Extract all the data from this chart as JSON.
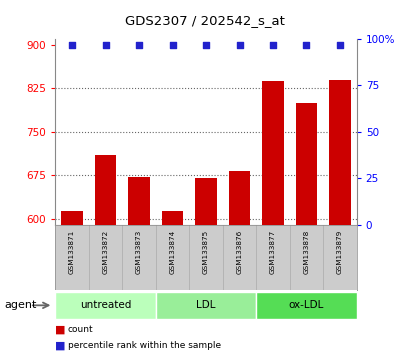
{
  "title": "GDS2307 / 202542_s_at",
  "categories": [
    "GSM133871",
    "GSM133872",
    "GSM133873",
    "GSM133874",
    "GSM133875",
    "GSM133876",
    "GSM133877",
    "GSM133878",
    "GSM133879"
  ],
  "bar_values": [
    613,
    710,
    672,
    613,
    670,
    682,
    838,
    800,
    840
  ],
  "dot_percentiles": [
    97,
    97,
    97,
    97,
    97,
    97,
    97,
    97,
    97
  ],
  "bar_color": "#cc0000",
  "dot_color": "#2222cc",
  "ylim_left": [
    590,
    910
  ],
  "yticks_left": [
    600,
    675,
    750,
    825,
    900
  ],
  "ytick_labels_left": [
    "600",
    "675",
    "750",
    "825",
    "900"
  ],
  "yticks_right_pct": [
    0,
    25,
    50,
    75,
    100
  ],
  "ytick_labels_right": [
    "0",
    "25",
    "50",
    "75",
    "100%"
  ],
  "groups": [
    {
      "label": "untreated",
      "indices": [
        0,
        1,
        2
      ],
      "color": "#bbffbb"
    },
    {
      "label": "LDL",
      "indices": [
        3,
        4,
        5
      ],
      "color": "#99ee99"
    },
    {
      "label": "ox-LDL",
      "indices": [
        6,
        7,
        8
      ],
      "color": "#55dd55"
    }
  ],
  "agent_label": "agent",
  "legend_count_label": "count",
  "legend_pct_label": "percentile rank within the sample",
  "grid_color": "#555555",
  "bar_width": 0.65,
  "plot_bg": "#ffffff",
  "label_row_bg": "#cccccc",
  "dotted_yticks": [
    600,
    675,
    750,
    825
  ]
}
